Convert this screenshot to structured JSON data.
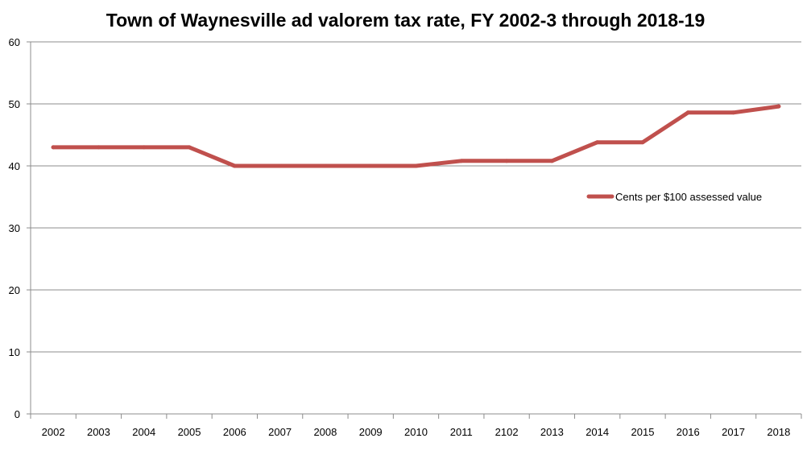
{
  "chart_data": {
    "type": "line",
    "title": "Town of Waynesville ad valorem tax rate, FY 2002-3 through 2018-19",
    "xlabel": "",
    "ylabel": "",
    "ylim": [
      0,
      60
    ],
    "yticks": [
      "0",
      "10",
      "20",
      "30",
      "40",
      "50",
      "60"
    ],
    "categories": [
      "2002",
      "2003",
      "2004",
      "2005",
      "2006",
      "2007",
      "2008",
      "2009",
      "2010",
      "2011",
      "2102",
      "2013",
      "2014",
      "2015",
      "2016",
      "2017",
      "2018"
    ],
    "series": [
      {
        "name": "Cents per $100 assessed value",
        "color": "#c0504d",
        "values": [
          43,
          43,
          43,
          43,
          40,
          40,
          40,
          40,
          40,
          40.8,
          40.8,
          40.8,
          43.8,
          43.8,
          48.6,
          48.6,
          49.6
        ]
      }
    ],
    "grid": true,
    "legend_position": "right"
  }
}
